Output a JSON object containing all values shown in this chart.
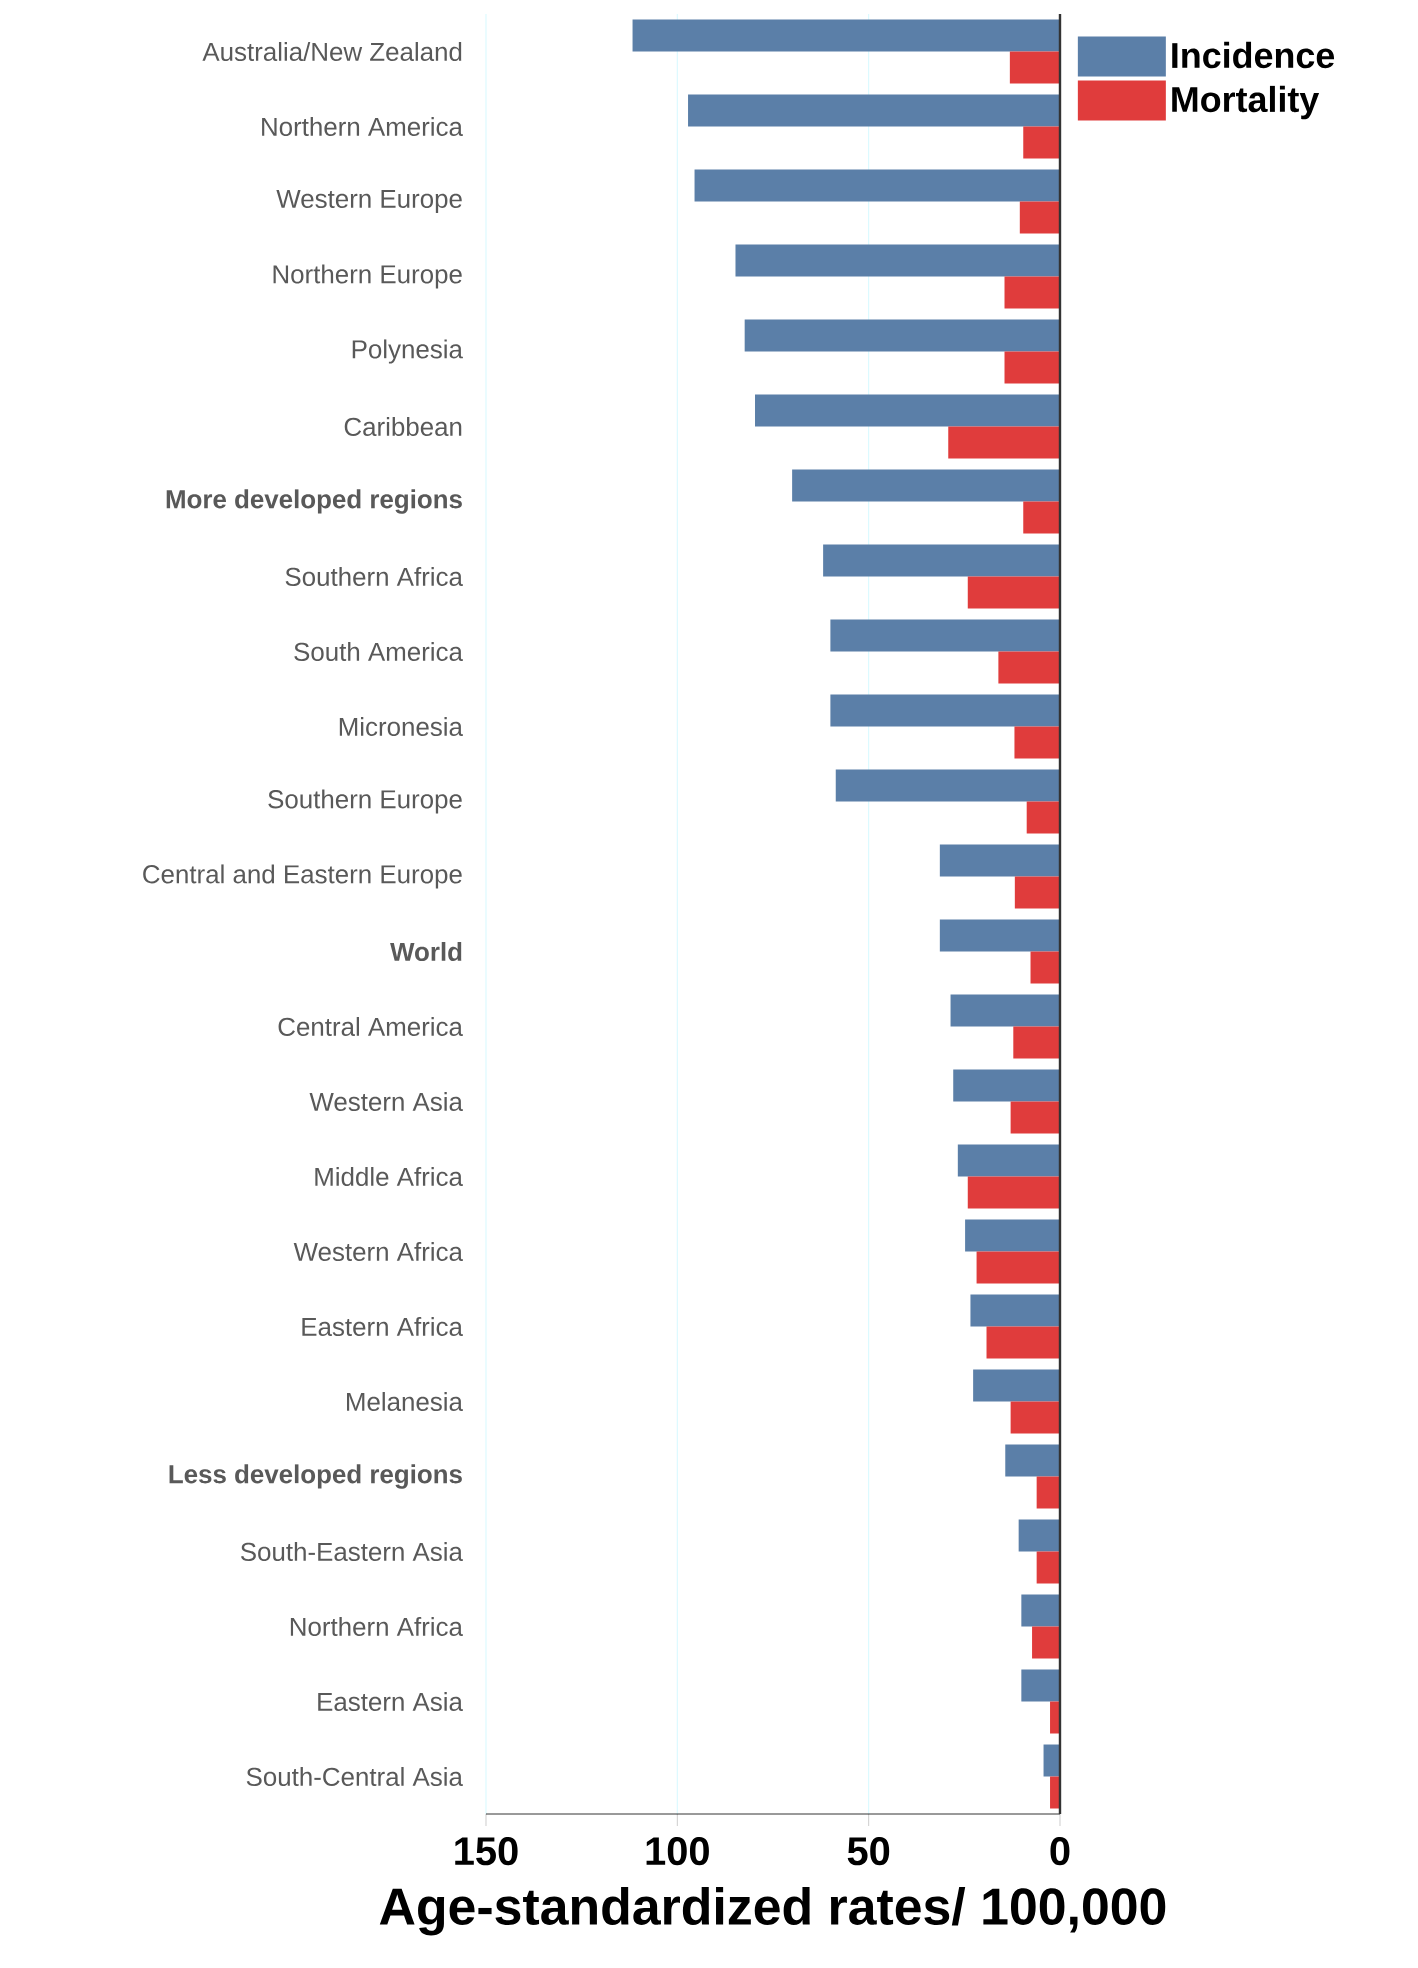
{
  "chart_data": {
    "type": "bar",
    "orientation": "horizontal",
    "xlabel": "Age-standardized rates/ 100,000",
    "categories": [
      "Australia/New Zealand",
      "Northern America",
      "Western Europe",
      "Northern Europe",
      "Polynesia",
      "Caribbean",
      "**More developed regions**",
      "Southern Africa",
      "South America",
      "Micronesia",
      "Southern Europe",
      "Central and Eastern Europe",
      "**World**",
      "Central America",
      "Western Asia",
      "Middle Africa",
      "Western Africa",
      "Eastern Africa",
      "Melanesia",
      "**Less developed regions**",
      "South-Eastern Asia",
      "Northern Africa",
      "Eastern Asia",
      "South-Central Asia"
    ],
    "series": [
      {
        "name": "Incidence",
        "color": "#5b7fa8",
        "values": [
          111.7,
          97.2,
          95.5,
          84.8,
          82.4,
          79.7,
          70.0,
          61.9,
          60.0,
          60.0,
          58.6,
          31.4,
          31.4,
          28.6,
          27.9,
          26.7,
          24.8,
          23.4,
          22.7,
          14.3,
          10.8,
          10.1,
          10.1,
          4.3
        ]
      },
      {
        "name": "Mortality",
        "color": "#e03c3c",
        "values": [
          13.1,
          9.6,
          10.5,
          14.5,
          14.5,
          29.2,
          9.6,
          24.1,
          16.1,
          11.9,
          8.7,
          11.8,
          7.7,
          12.2,
          12.9,
          24.1,
          21.8,
          19.2,
          12.9,
          6.1,
          6.1,
          7.3,
          2.6,
          2.6
        ]
      }
    ],
    "xlim": [
      150,
      0
    ],
    "xticks": [
      0,
      50,
      100,
      150
    ],
    "grid": "x",
    "legend": "top right"
  }
}
